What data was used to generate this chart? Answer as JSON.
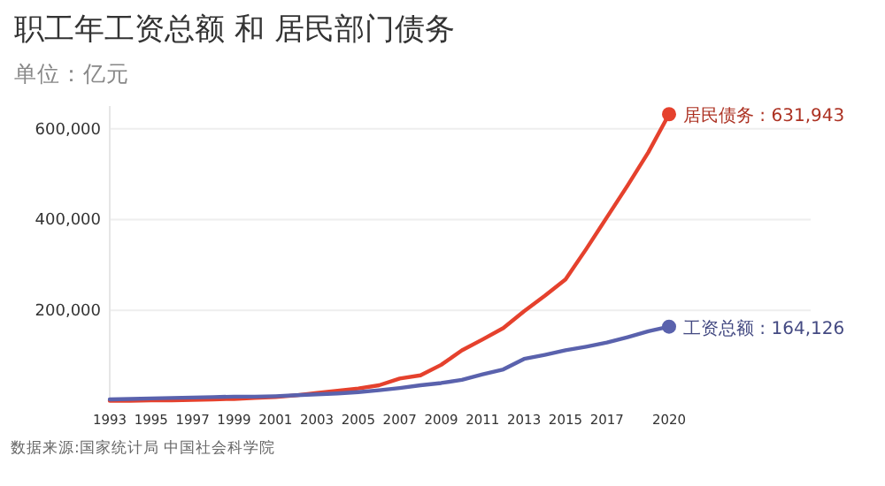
{
  "chart_data": {
    "type": "line",
    "title": "职工年工资总额 和 居民部门债务",
    "subtitle": "单位：亿元",
    "x": [
      1993,
      1994,
      1995,
      1996,
      1997,
      1998,
      1999,
      2000,
      2001,
      2002,
      2003,
      2004,
      2005,
      2006,
      2007,
      2008,
      2009,
      2010,
      2011,
      2012,
      2013,
      2014,
      2015,
      2016,
      2017,
      2018,
      2019,
      2020
    ],
    "series": [
      {
        "name": "居民债务 :",
        "color": "#e5412d",
        "values": [
          1000,
          1000,
          2000,
          2000,
          3000,
          4000,
          5000,
          7000,
          9000,
          13000,
          18000,
          23000,
          28000,
          35000,
          50000,
          57000,
          80000,
          112000,
          136000,
          161000,
          198000,
          232000,
          268000,
          335000,
          405000,
          475000,
          548000,
          631943
        ],
        "value_labels": [
          null,
          null,
          null,
          null,
          null,
          null,
          null,
          null,
          null,
          null,
          null,
          null,
          null,
          null,
          null,
          null,
          null,
          null,
          null,
          null,
          null,
          null,
          null,
          null,
          null,
          null,
          null,
          "631,943"
        ]
      },
      {
        "name": "工资总额 :",
        "color": "#5a62ad",
        "values": [
          4000,
          5000,
          6000,
          7000,
          8000,
          9000,
          10000,
          10000,
          11000,
          13000,
          15000,
          17000,
          20000,
          24000,
          29000,
          35000,
          40000,
          47000,
          59000,
          70000,
          93000,
          102000,
          112000,
          120000,
          129000,
          141000,
          154000,
          164126
        ],
        "value_labels": [
          null,
          null,
          null,
          null,
          null,
          null,
          null,
          null,
          null,
          null,
          null,
          null,
          null,
          null,
          null,
          null,
          null,
          null,
          null,
          null,
          null,
          null,
          null,
          null,
          null,
          null,
          null,
          "164,126"
        ]
      }
    ],
    "xlim": [
      1993,
      2020
    ],
    "xticks": [
      1993,
      1995,
      1997,
      1999,
      2001,
      2003,
      2005,
      2007,
      2009,
      2011,
      2013,
      2015,
      2017,
      2020
    ],
    "yticks": [
      {
        "value": 200000,
        "label": "200,000"
      },
      {
        "value": 400000,
        "label": "400,000"
      },
      {
        "value": 600000,
        "label": "600,000"
      }
    ],
    "ylim": [
      0,
      650000
    ],
    "grid": "y",
    "marker": "none",
    "line_style": "solid",
    "annotations": [
      "数据来源:国家统计局 中国社会科学院"
    ]
  }
}
